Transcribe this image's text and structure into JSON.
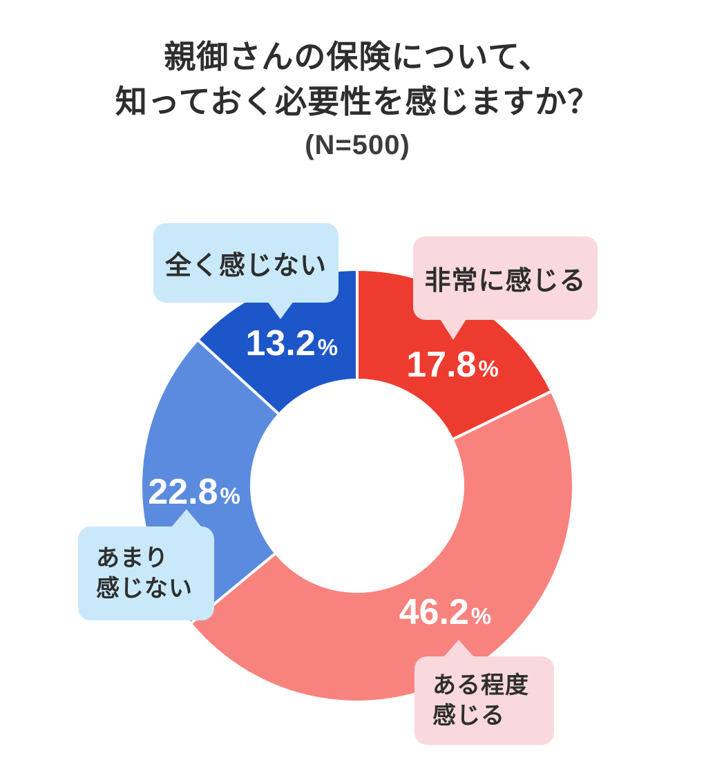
{
  "title": {
    "line1": "親御さんの保険について、",
    "line2": "知っておく必要性を感じますか？",
    "sample": "(N=500)"
  },
  "chart_data": {
    "type": "pie",
    "subtype": "donut",
    "title": "親御さんの保険について、知っておく必要性を感じますか？",
    "sample_size_label": "(N=500)",
    "n": 500,
    "unit": "%",
    "start_angle_deg": 0,
    "direction": "clockwise",
    "inner_radius_ratio": 0.49,
    "legend_position": "callouts",
    "categories": [
      "非常に感じる",
      "ある程度感じる",
      "あまり感じない",
      "全く感じない"
    ],
    "values": [
      17.8,
      46.2,
      22.8,
      13.2
    ],
    "colors": [
      "#ee3b2f",
      "#f8837e",
      "#5b8bdf",
      "#1d56c8"
    ],
    "segments": [
      {
        "label": "非常に感じる",
        "label_lines": [
          "非常に感じる"
        ],
        "value": 17.8,
        "value_display": "17.8",
        "unit": "%",
        "color": "#ee3b2f",
        "callout_color": "#f9d9dd"
      },
      {
        "label": "ある程度感じる",
        "label_lines": [
          "ある程度",
          "感じる"
        ],
        "value": 46.2,
        "value_display": "46.2",
        "unit": "%",
        "color": "#f8837e",
        "callout_color": "#f9d9dd"
      },
      {
        "label": "あまり感じない",
        "label_lines": [
          "あまり",
          "感じない"
        ],
        "value": 22.8,
        "value_display": "22.8",
        "unit": "%",
        "color": "#5b8bdf",
        "callout_color": "#c9e9fb"
      },
      {
        "label": "全く感じない",
        "label_lines": [
          "全く感じない"
        ],
        "value": 13.2,
        "value_display": "13.2",
        "unit": "%",
        "color": "#1d56c8",
        "callout_color": "#c9e9fb"
      }
    ]
  }
}
